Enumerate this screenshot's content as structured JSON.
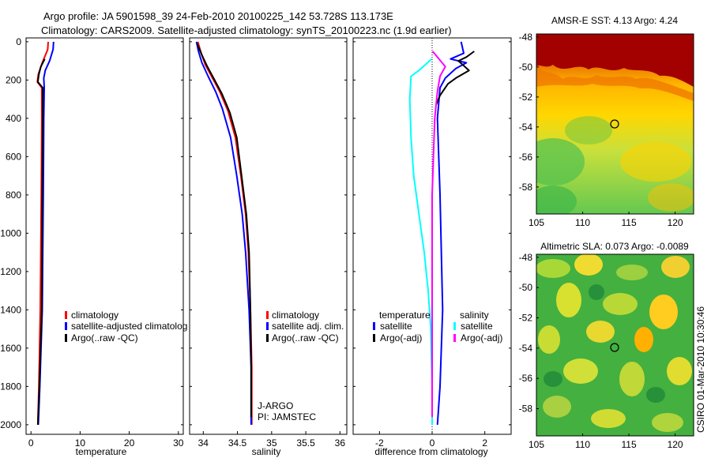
{
  "title": {
    "line1": "Argo profile: JA 5901598_39 24-Feb-2010 20100225_142 53.728S 113.173E",
    "line2": "Climatology: CARS2009. Satellite-adjusted climatology: synTS_20100223.nc (1.9d earlier)"
  },
  "colors": {
    "climatology": "#ff0000",
    "satellite": "#0000ff",
    "argo": "#000000",
    "sal_sat": "#00ffff",
    "sal_argo": "#ff00ff"
  },
  "depth_axis": {
    "ticks": [
      "0",
      "200",
      "400",
      "600",
      "800",
      "1000",
      "1200",
      "1400",
      "1600",
      "1800",
      "2000"
    ]
  },
  "chart_data": [
    {
      "type": "line",
      "id": "temperature",
      "xlabel": "temperature",
      "xlim": [
        -1,
        31
      ],
      "ylim": [
        2050,
        -20
      ],
      "xticks": [
        "0",
        "10",
        "20",
        "30"
      ],
      "legend": {
        "clim": "climatology",
        "sat": "satellite-adjusted climatolog",
        "argo": "Argo(..raw -QC)"
      },
      "series": [
        {
          "name": "climatology",
          "color": "climatology",
          "points": [
            [
              3.5,
              0
            ],
            [
              3.4,
              40
            ],
            [
              2.3,
              110
            ],
            [
              1.5,
              170
            ],
            [
              1.3,
              210
            ],
            [
              2.2,
              240
            ],
            [
              2.2,
              400
            ],
            [
              2.1,
              800
            ],
            [
              1.9,
              1400
            ],
            [
              1.6,
              1800
            ],
            [
              1.4,
              2000
            ]
          ]
        },
        {
          "name": "satellite-adjusted",
          "color": "satellite",
          "points": [
            [
              4.6,
              0
            ],
            [
              4.5,
              40
            ],
            [
              3.8,
              100
            ],
            [
              2.9,
              150
            ],
            [
              2.6,
              190
            ],
            [
              2.7,
              240
            ],
            [
              2.6,
              400
            ],
            [
              2.5,
              800
            ],
            [
              2.3,
              1400
            ],
            [
              1.8,
              1800
            ],
            [
              1.5,
              2000
            ]
          ]
        },
        {
          "name": "Argo",
          "color": "argo",
          "points": [
            [
              2.8,
              90
            ],
            [
              2.0,
              130
            ],
            [
              1.6,
              170
            ],
            [
              1.4,
              210
            ],
            [
              2.4,
              240
            ],
            [
              2.4,
              400
            ],
            [
              2.3,
              800
            ],
            [
              2.2,
              1400
            ],
            [
              1.7,
              1800
            ],
            [
              1.4,
              2000
            ]
          ]
        }
      ]
    },
    {
      "type": "line",
      "id": "salinity",
      "xlabel": "salinity",
      "xlim": [
        33.8,
        36.1
      ],
      "ylim": [
        2050,
        -20
      ],
      "xticks": [
        "34",
        "34.5",
        "35",
        "35.5",
        "36"
      ],
      "legend": {
        "clim": "climatology",
        "sat": "satellite adj. clim.",
        "argo": "Argo(..raw -QC)"
      },
      "annotation": {
        "line1": "J-ARGO",
        "line2": "PI: JAMSTEC"
      },
      "series": [
        {
          "name": "climatology",
          "color": "climatology",
          "points": [
            [
              33.92,
              0
            ],
            [
              33.97,
              60
            ],
            [
              34.03,
              120
            ],
            [
              34.12,
              180
            ],
            [
              34.24,
              260
            ],
            [
              34.36,
              360
            ],
            [
              34.47,
              500
            ],
            [
              34.55,
              700
            ],
            [
              34.62,
              900
            ],
            [
              34.66,
              1100
            ],
            [
              34.69,
              1400
            ],
            [
              34.71,
              1700
            ],
            [
              34.71,
              2000
            ]
          ]
        },
        {
          "name": "satellite-adjusted",
          "color": "satellite",
          "points": [
            [
              33.9,
              0
            ],
            [
              33.93,
              50
            ],
            [
              33.98,
              110
            ],
            [
              34.07,
              180
            ],
            [
              34.18,
              260
            ],
            [
              34.28,
              350
            ],
            [
              34.4,
              500
            ],
            [
              34.49,
              700
            ],
            [
              34.57,
              900
            ],
            [
              34.62,
              1100
            ],
            [
              34.67,
              1400
            ],
            [
              34.7,
              1700
            ],
            [
              34.7,
              2000
            ]
          ]
        },
        {
          "name": "Argo",
          "color": "argo",
          "points": [
            [
              33.91,
              10
            ],
            [
              33.98,
              70
            ],
            [
              34.06,
              130
            ],
            [
              34.15,
              190
            ],
            [
              34.27,
              270
            ],
            [
              34.39,
              370
            ],
            [
              34.49,
              500
            ],
            [
              34.56,
              700
            ],
            [
              34.63,
              900
            ],
            [
              34.67,
              1100
            ],
            [
              34.69,
              1400
            ],
            [
              34.7,
              1700
            ],
            [
              34.7,
              1960
            ]
          ]
        }
      ]
    },
    {
      "type": "line",
      "id": "difference",
      "xlabel": "difference from climatology",
      "xlim": [
        -3,
        3
      ],
      "ylim": [
        2050,
        -20
      ],
      "xticks": [
        "-2",
        "0",
        "2"
      ],
      "legend": {
        "temp_head": "temperature",
        "sal_head": "salinity",
        "temp_sat": "satellite",
        "temp_argo": "Argo(-adj)",
        "sal_sat": "satellite",
        "sal_argo": "Argo(-adj)"
      },
      "series": [
        {
          "name": "temp satellite",
          "color": "satellite",
          "points": [
            [
              1.1,
              0
            ],
            [
              1.2,
              60
            ],
            [
              0.7,
              90
            ],
            [
              1.3,
              110
            ],
            [
              0.9,
              140
            ],
            [
              0.5,
              190
            ],
            [
              0.3,
              240
            ],
            [
              0.2,
              400
            ],
            [
              0.3,
              800
            ],
            [
              0.4,
              1400
            ],
            [
              0.3,
              1800
            ],
            [
              0.2,
              2000
            ]
          ]
        },
        {
          "name": "temp Argo",
          "color": "argo",
          "points": [
            [
              1.6,
              50
            ],
            [
              1.3,
              80
            ],
            [
              1.0,
              100
            ],
            [
              1.4,
              150
            ],
            [
              0.9,
              190
            ],
            [
              0.6,
              220
            ],
            [
              0.3,
              280
            ],
            [
              0.15,
              330
            ]
          ]
        },
        {
          "name": "sal satellite",
          "color": "sal_sat",
          "points": [
            [
              -0.02,
              90
            ],
            [
              -0.5,
              150
            ],
            [
              -0.8,
              180
            ],
            [
              -0.85,
              300
            ],
            [
              -0.8,
              500
            ],
            [
              -0.7,
              700
            ],
            [
              -0.5,
              900
            ],
            [
              -0.3,
              1100
            ],
            [
              -0.15,
              1300
            ],
            [
              -0.05,
              1500
            ],
            [
              0.0,
              1800
            ],
            [
              0.0,
              2000
            ]
          ]
        },
        {
          "name": "sal Argo",
          "color": "sal_argo",
          "points": [
            [
              0.02,
              50
            ],
            [
              0.5,
              130
            ],
            [
              0.3,
              180
            ],
            [
              0.2,
              260
            ],
            [
              0.1,
              400
            ],
            [
              0.0,
              800
            ],
            [
              0.0,
              1500
            ],
            [
              0.0,
              1960
            ]
          ]
        }
      ]
    }
  ],
  "maps": [
    {
      "id": "sst",
      "title": "AMSR-E SST: 4.13 Argo: 4.24",
      "yticks": [
        "-48",
        "-50",
        "-52",
        "-54",
        "-56",
        "-58"
      ],
      "xticks": [
        "105",
        "110",
        "115",
        "120"
      ]
    },
    {
      "id": "sla",
      "title": "Altimetric SLA: 0.073 Argo: -0.0089",
      "yticks": [
        "-48",
        "-50",
        "-52",
        "-54",
        "-56",
        "-58"
      ],
      "xticks": [
        "105",
        "110",
        "115",
        "120"
      ]
    }
  ],
  "credit": "CSIRO 01-Mar-2010 10:30:46"
}
